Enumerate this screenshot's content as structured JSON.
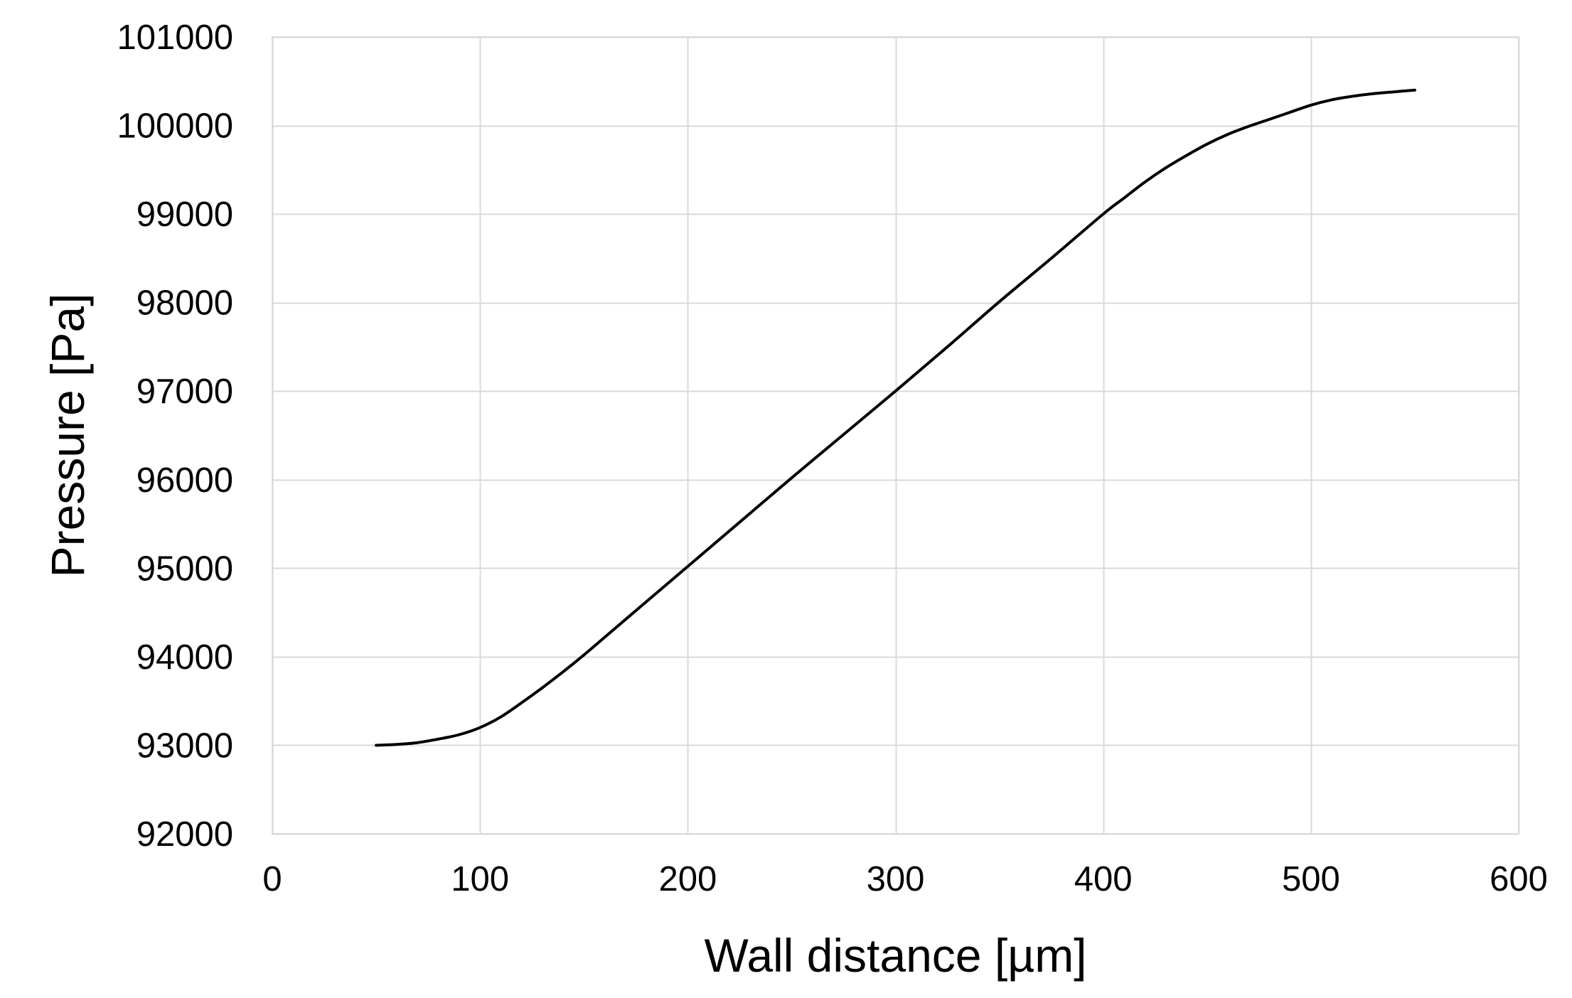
{
  "chart_data": {
    "type": "line",
    "title": "",
    "xlabel": "Wall distance  [µm]",
    "ylabel": "Pressure [Pa]",
    "xlim": [
      0,
      600
    ],
    "ylim": [
      92000,
      101000
    ],
    "x_ticks": [
      0,
      100,
      200,
      300,
      400,
      500,
      600
    ],
    "x_tick_labels": [
      "0",
      "100",
      "200",
      "300",
      "400",
      "500",
      "600"
    ],
    "y_ticks": [
      92000,
      93000,
      94000,
      95000,
      96000,
      97000,
      98000,
      99000,
      100000,
      101000
    ],
    "y_tick_labels": [
      "92000",
      "93000",
      "94000",
      "95000",
      "96000",
      "97000",
      "98000",
      "99000",
      "100000",
      "101000"
    ],
    "grid": true,
    "legend": "none",
    "line_color": "#000000",
    "series": [
      {
        "x": [
          50,
          60,
          70,
          80,
          90,
          100,
          110,
          120,
          130,
          140,
          150,
          160,
          170,
          180,
          190,
          200,
          225,
          250,
          275,
          300,
          325,
          350,
          375,
          400,
          410,
          420,
          430,
          440,
          450,
          460,
          470,
          480,
          490,
          500,
          510,
          520,
          530,
          540,
          550
        ],
        "values": [
          93000,
          93010,
          93030,
          93070,
          93120,
          93200,
          93320,
          93480,
          93650,
          93830,
          94020,
          94220,
          94420,
          94620,
          94820,
          95020,
          95520,
          96020,
          96510,
          97000,
          97500,
          98010,
          98500,
          99000,
          99180,
          99360,
          99520,
          99660,
          99790,
          99900,
          99990,
          100070,
          100150,
          100230,
          100290,
          100330,
          100360,
          100380,
          100400
        ]
      }
    ]
  }
}
